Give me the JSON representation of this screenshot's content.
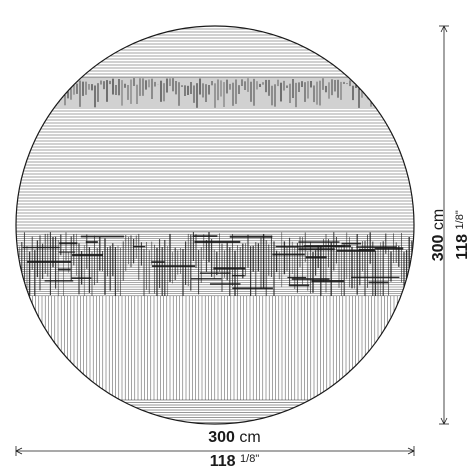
{
  "dimensions": {
    "width_cm_value": "300",
    "width_cm_unit": "cm",
    "width_in_whole": "118",
    "width_in_fraction": "1/8\"",
    "height_cm_value": "300",
    "height_cm_unit": "cm",
    "height_in_whole": "118",
    "height_in_fraction": "1/8\""
  },
  "colors": {
    "line": "#1a1a1a",
    "background": "#ffffff"
  }
}
